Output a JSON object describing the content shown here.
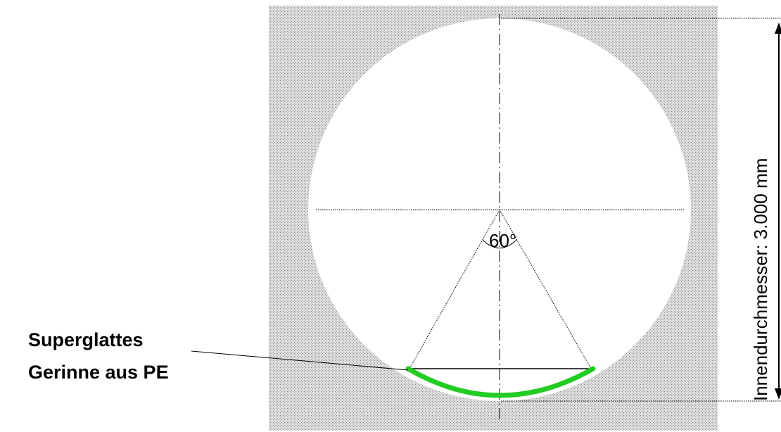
{
  "labels": {
    "channel_line1": "Superglattes",
    "channel_line2": "Gerinne aus PE",
    "angle": "60°",
    "dimension": "Innendurchmesser: 3.000 mm"
  },
  "colors": {
    "background_fill": "#d9d9d9",
    "stipple": "#9a9a9a",
    "channel": "#22cc22",
    "line": "#000000"
  },
  "shapes": {
    "channel_angle_deg": 60
  }
}
